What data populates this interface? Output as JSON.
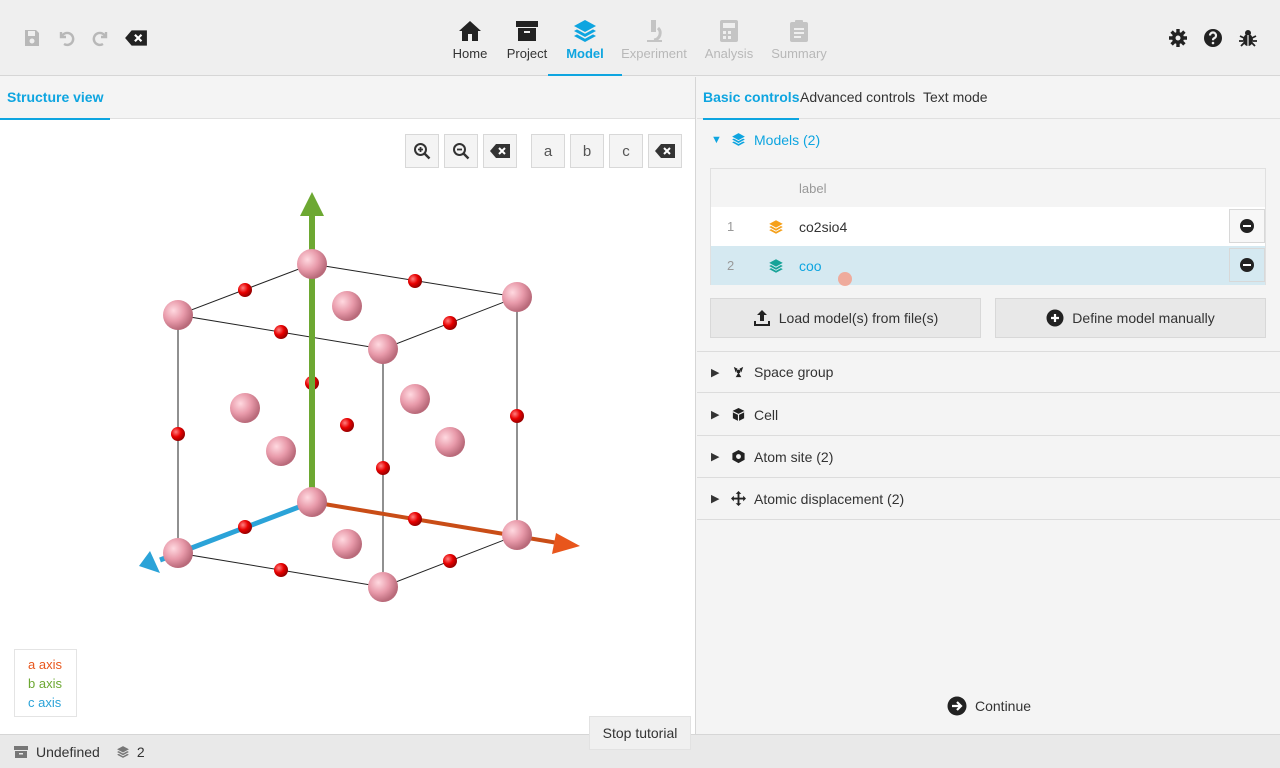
{
  "nav": {
    "tabs": [
      {
        "label": "Home",
        "icon": "home-icon"
      },
      {
        "label": "Project",
        "icon": "archive-icon"
      },
      {
        "label": "Model",
        "icon": "layers-icon",
        "active": true
      },
      {
        "label": "Experiment",
        "icon": "microscope-icon",
        "disabled": true
      },
      {
        "label": "Analysis",
        "icon": "calculator-icon",
        "disabled": true
      },
      {
        "label": "Summary",
        "icon": "clipboard-icon",
        "disabled": true
      }
    ],
    "left_icons": [
      "save-icon",
      "undo-icon",
      "redo-icon",
      "backspace-icon"
    ],
    "right_icons": [
      "gear-icon",
      "help-icon",
      "bug-icon"
    ]
  },
  "left": {
    "tab": "Structure view",
    "view_buttons": {
      "a": "a",
      "b": "b",
      "c": "c"
    },
    "legend": [
      {
        "label": "a axis",
        "color": "#e8561c"
      },
      {
        "label": "b axis",
        "color": "#6da832"
      },
      {
        "label": "c axis",
        "color": "#2ba3d8"
      }
    ]
  },
  "right": {
    "tabs": [
      "Basic controls",
      "Advanced controls",
      "Text mode"
    ],
    "models_section": {
      "title": "Models (2)",
      "column_label": "label",
      "rows": [
        {
          "index": "1",
          "name": "co2sio4",
          "color": "#f5a01a"
        },
        {
          "index": "2",
          "name": "coo",
          "color": "#17a398",
          "selected": true
        }
      ],
      "load_button": "Load model(s) from file(s)",
      "define_button": "Define model manually"
    },
    "sections": [
      {
        "title": "Space group",
        "icon": "space-group-icon"
      },
      {
        "title": "Cell",
        "icon": "cube-icon"
      },
      {
        "title": "Atom site (2)",
        "icon": "atom-site-icon"
      },
      {
        "title": "Atomic displacement (2)",
        "icon": "arrows-icon"
      }
    ],
    "continue": "Continue"
  },
  "status": {
    "project": "Undefined",
    "model_count": "2"
  },
  "tutorial": {
    "stop": "Stop tutorial"
  },
  "colors": {
    "accent": "#0ea5e0",
    "atom_large": "#e89aaa",
    "atom_small": "#e80000",
    "a_axis": "#e8561c",
    "b_axis": "#6da832",
    "c_axis": "#2ba3d8"
  }
}
